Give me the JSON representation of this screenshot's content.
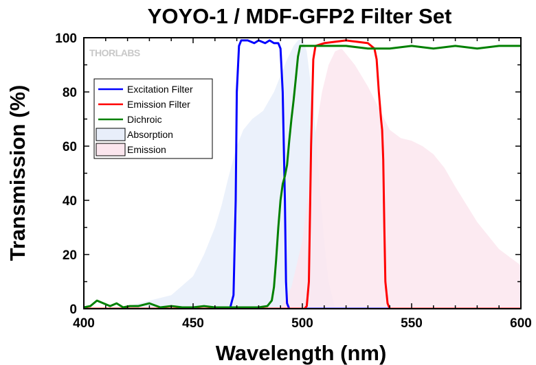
{
  "chart_data": {
    "type": "line",
    "title": "YOYO-1 / MDF-GFP2 Filter Set",
    "xlabel": "Wavelength (nm)",
    "ylabel": "Transmission (%)",
    "xlim": [
      400,
      600
    ],
    "ylim": [
      0,
      100
    ],
    "xticks": [
      400,
      450,
      500,
      550,
      600
    ],
    "yticks": [
      0,
      20,
      40,
      60,
      80,
      100
    ],
    "grid": false,
    "legend_position": "top-left",
    "watermark": "THORLABS",
    "series": [
      {
        "name": "Excitation Filter",
        "kind": "line",
        "color": "#0000ff",
        "x": [
          400,
          465,
          467,
          468.5,
          469.5,
          470,
          471,
          472,
          475,
          478,
          480,
          483,
          485,
          487,
          489,
          490,
          491,
          492,
          492.5,
          493,
          494,
          600
        ],
        "y": [
          0,
          0,
          0.5,
          5,
          40,
          80,
          97,
          99,
          99,
          98,
          99,
          98,
          99,
          98,
          98,
          96,
          80,
          40,
          10,
          2,
          0,
          0
        ]
      },
      {
        "name": "Emission Filter",
        "kind": "line",
        "color": "#ff0000",
        "x": [
          400,
          501,
          502,
          503,
          504,
          505,
          506,
          510,
          515,
          520,
          525,
          530,
          533,
          534,
          535,
          536,
          536.5,
          537,
          537.5,
          538,
          539,
          540,
          600
        ],
        "y": [
          0,
          0,
          1,
          10,
          60,
          92,
          97,
          98,
          98.5,
          99,
          98.5,
          98,
          96,
          92,
          80,
          70,
          66,
          55,
          30,
          10,
          2,
          0,
          0
        ]
      },
      {
        "name": "Dichroic",
        "kind": "line",
        "color": "#008000",
        "x": [
          400,
          403,
          406,
          409,
          412,
          415,
          418,
          421,
          425,
          430,
          435,
          440,
          445,
          450,
          455,
          460,
          465,
          470,
          475,
          480,
          484,
          486,
          487,
          488,
          489,
          490,
          491,
          492,
          493,
          494,
          495,
          496,
          497,
          498,
          499,
          500,
          505,
          510,
          520,
          530,
          540,
          550,
          560,
          570,
          580,
          590,
          600
        ],
        "y": [
          0.5,
          1,
          3,
          2,
          1,
          2,
          0.5,
          1,
          1,
          2,
          0.5,
          1,
          0.5,
          0.5,
          1,
          0.5,
          0.5,
          0.5,
          0.5,
          0.5,
          1,
          3,
          8,
          18,
          30,
          40,
          46,
          49,
          53,
          62,
          70,
          77,
          85,
          93,
          97,
          97,
          97,
          97,
          97,
          96,
          96,
          97,
          96,
          97,
          96,
          97,
          97
        ]
      },
      {
        "name": "Absorption",
        "kind": "area",
        "color": "#e8eefa",
        "x": [
          400,
          420,
          440,
          450,
          455,
          460,
          463,
          466,
          470,
          473,
          477,
          482,
          487,
          490,
          493,
          496,
          498,
          500,
          502,
          505,
          508,
          510,
          512,
          515
        ],
        "y": [
          0,
          1,
          5,
          12,
          20,
          30,
          38,
          48,
          60,
          66,
          70,
          73,
          80,
          86,
          92,
          97,
          99,
          100,
          95,
          75,
          45,
          25,
          10,
          0
        ]
      },
      {
        "name": "Emission",
        "kind": "area",
        "color": "#fbe6ee",
        "x": [
          490,
          495,
          500,
          503,
          506,
          509,
          512,
          515,
          518,
          521,
          524,
          527,
          530,
          535,
          540,
          545,
          550,
          555,
          560,
          565,
          570,
          580,
          590,
          600
        ],
        "y": [
          0,
          8,
          25,
          45,
          65,
          80,
          90,
          95,
          96,
          93,
          90,
          86,
          82,
          74,
          66,
          63,
          62,
          60,
          57,
          52,
          45,
          32,
          22,
          16
        ]
      }
    ]
  }
}
